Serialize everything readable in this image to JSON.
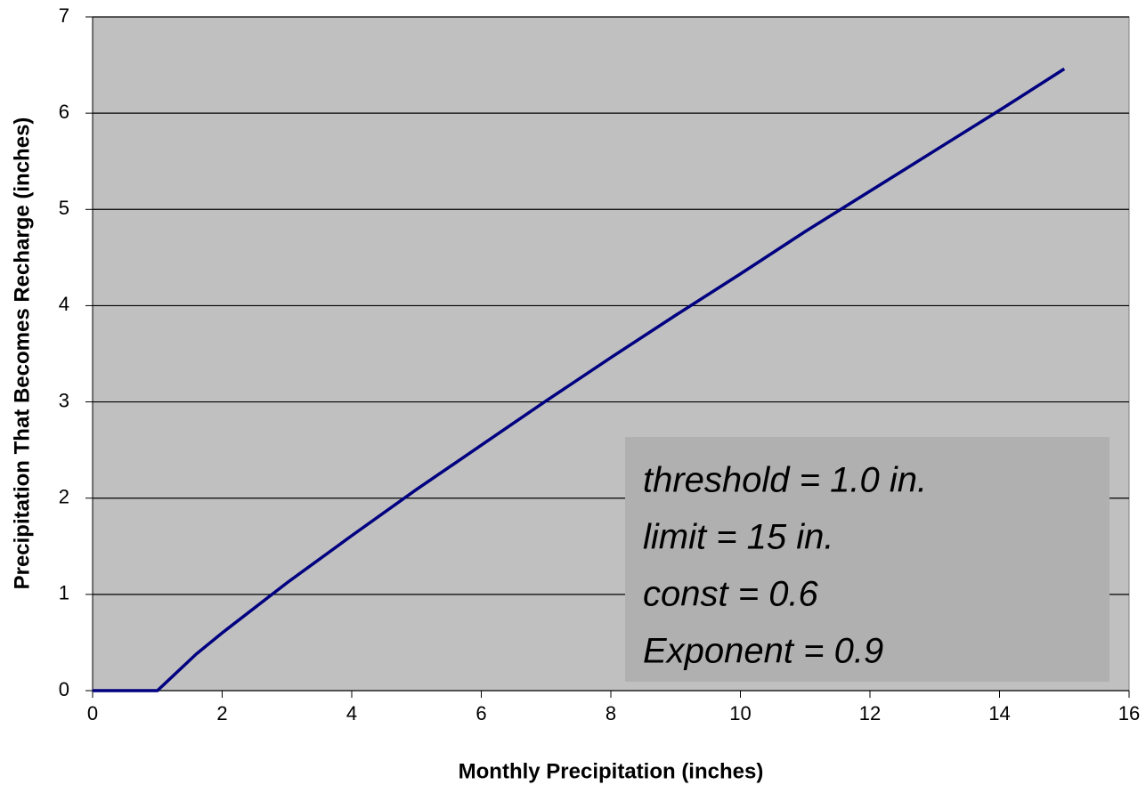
{
  "chart_data": {
    "type": "line",
    "x_label": "Monthly Precipitation (inches)",
    "y_label": "Precipitation That Becomes Recharge (inches)",
    "x": [
      0,
      1,
      1.6,
      2,
      3,
      4,
      5,
      6,
      7,
      8,
      9,
      10,
      11,
      12,
      13,
      14,
      15
    ],
    "series": [
      {
        "name": "Recharge",
        "color": "#000080",
        "values": [
          0,
          0,
          0.38,
          0.6,
          1.12,
          1.61,
          2.09,
          2.55,
          3.01,
          3.46,
          3.9,
          4.33,
          4.77,
          5.19,
          5.61,
          6.03,
          6.46
        ]
      }
    ],
    "xlim": [
      0,
      16
    ],
    "xticks": [
      0,
      2,
      4,
      6,
      8,
      10,
      12,
      14,
      16
    ],
    "ylim": [
      0,
      7
    ],
    "yticks": [
      0,
      1,
      2,
      3,
      4,
      5,
      6,
      7
    ],
    "grid": true,
    "annotation": [
      "threshold = 1.0 in.",
      "limit = 15 in.",
      "const = 0.6",
      "Exponent = 0.9"
    ]
  }
}
